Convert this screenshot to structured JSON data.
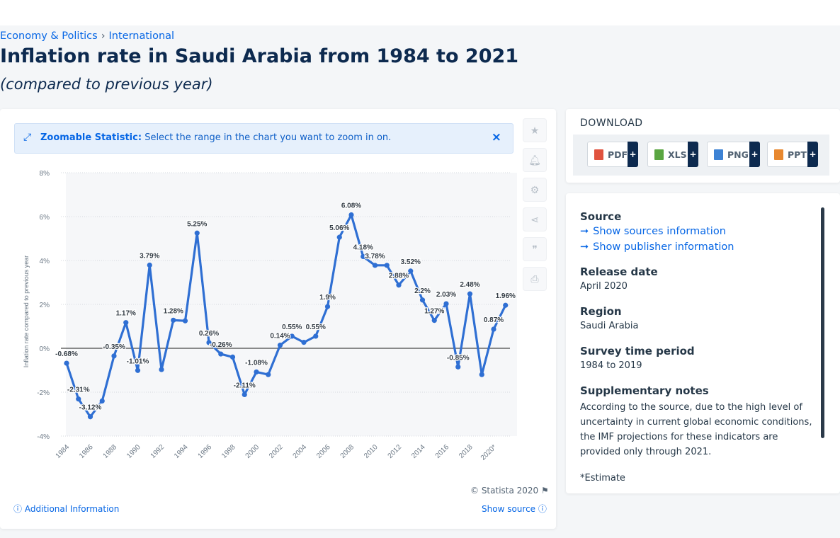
{
  "breadcrumb": {
    "item1": "Economy & Politics",
    "sep": "›",
    "item2": "International"
  },
  "page": {
    "title": "Inflation rate in Saudi Arabia from 1984 to 2021",
    "subtitle": "(compared to previous year)"
  },
  "zoom": {
    "label": "Zoomable Statistic:",
    "text": "Select the range in the chart you want to zoom in on.",
    "close": "×"
  },
  "sidebar_icons": [
    "star-icon",
    "bell-icon",
    "gear-icon",
    "share-icon",
    "quote-icon",
    "print-icon"
  ],
  "chart_footer": {
    "copyright": "© Statista 2020",
    "additional": "Additional Information",
    "show_source": "Show source"
  },
  "download": {
    "title": "DOWNLOAD",
    "buttons": [
      {
        "label": "PDF",
        "color": "#e0533f"
      },
      {
        "label": "XLS",
        "color": "#5aa642"
      },
      {
        "label": "PNG",
        "color": "#3d82d4"
      },
      {
        "label": "PPT",
        "color": "#e8882f"
      }
    ],
    "plus": "+"
  },
  "info": {
    "source_h": "Source",
    "source_link1": "Show sources information",
    "source_link2": "Show publisher information",
    "release_h": "Release date",
    "release_v": "April 2020",
    "region_h": "Region",
    "region_v": "Saudi Arabia",
    "period_h": "Survey time period",
    "period_v": "1984 to 2019",
    "notes_h": "Supplementary notes",
    "notes_v": "According to the source, due to the high level of uncertainty in current global economic conditions, the IMF projections for these indicators are provided only through 2021.",
    "estimate": "*Estimate"
  },
  "colors": {
    "line": "#2f6fd3",
    "brand": "#0d2a4f",
    "link": "#0666e5"
  },
  "chart_data": {
    "type": "line",
    "ylabel": "Inflation rate compared to previous year",
    "ylim": [
      -4,
      8
    ],
    "yticks": [
      "8%",
      "6%",
      "4%",
      "2%",
      "0%",
      "-2%",
      "-4%"
    ],
    "ytick_values": [
      8,
      6,
      4,
      2,
      0,
      -2,
      -4
    ],
    "xticks": [
      "1984",
      "1986",
      "1988",
      "1990",
      "1992",
      "1994",
      "1996",
      "1998",
      "2000",
      "2002",
      "2004",
      "2006",
      "2008",
      "2010",
      "2012",
      "2014",
      "2016",
      "2018",
      "2020*"
    ],
    "years": [
      1984,
      1985,
      1986,
      1987,
      1988,
      1989,
      1990,
      1991,
      1992,
      1993,
      1994,
      1995,
      1996,
      1997,
      1998,
      1999,
      2000,
      2001,
      2002,
      2003,
      2004,
      2005,
      2006,
      2007,
      2008,
      2009,
      2010,
      2011,
      2012,
      2013,
      2014,
      2015,
      2016,
      2017,
      2018,
      2019,
      2020,
      2021
    ],
    "values": [
      -0.68,
      -2.31,
      -3.12,
      -2.4,
      -0.35,
      1.17,
      -1.01,
      3.79,
      -0.97,
      1.28,
      1.25,
      5.25,
      0.26,
      -0.26,
      -0.4,
      -2.11,
      -1.08,
      -1.2,
      0.14,
      0.55,
      0.27,
      0.55,
      1.9,
      5.06,
      6.08,
      4.18,
      3.78,
      3.78,
      2.88,
      3.52,
      2.2,
      1.27,
      2.03,
      -0.85,
      2.48,
      -1.2,
      0.87,
      1.96
    ],
    "labels": [
      "-0.68%",
      "-2.31%",
      "-3.12%",
      "",
      "-0.35%",
      "1.17%",
      "-1.01%",
      "3.79%",
      "",
      "1.28%",
      "",
      "5.25%",
      "0.26%",
      "-0.26%",
      "",
      "-2.11%",
      "-1.08%",
      "",
      "0.14%",
      "0.55%",
      "",
      "0.55%",
      "1.9%",
      "5.06%",
      "6.08%",
      "4.18%",
      "3.78%",
      "",
      "2.88%",
      "3.52%",
      "2.2%",
      "1.27%",
      "2.03%",
      "-0.85%",
      "2.48%",
      "",
      "0.87%",
      "1.96%"
    ],
    "grid": true,
    "legend": "none"
  }
}
